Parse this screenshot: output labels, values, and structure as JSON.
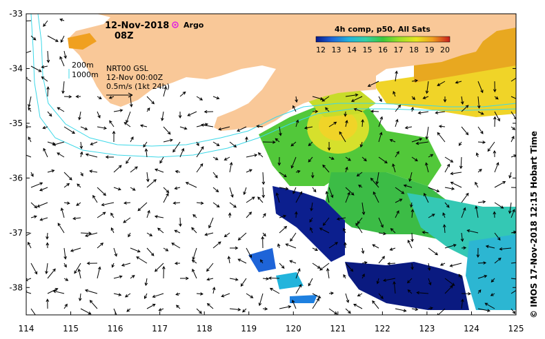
{
  "map": {
    "date": "12-Nov-2018",
    "time": "08Z",
    "argo_label": "Argo",
    "colorbar_title": "4h comp, p50, All Sats",
    "colorbar_ticks": [
      "12",
      "13",
      "14",
      "15",
      "16",
      "17",
      "18",
      "19",
      "20"
    ],
    "colorbar_colors": [
      "#0a1a8a",
      "#1e64d8",
      "#22b4dc",
      "#34d0a8",
      "#3ac83c",
      "#9ce028",
      "#e6e61e",
      "#f0b01e",
      "#e0641e",
      "#c81e1e"
    ],
    "contour_labels": [
      "200m",
      "1000m"
    ],
    "product_info": [
      "NRT00 GSL",
      "12-Nov 00:00Z",
      "0.5m/s (1kt 24h)"
    ],
    "credit": "©  IMOS 17-Nov-2018 12:15 Hobart Time",
    "x_ticks": [
      "114",
      "115",
      "116",
      "117",
      "118",
      "119",
      "120",
      "121",
      "122",
      "123",
      "124",
      "125"
    ],
    "y_ticks": [
      "-33",
      "-34",
      "-35",
      "-36",
      "-37",
      "-38"
    ],
    "x_range": [
      114,
      125
    ],
    "y_range": [
      -38.5,
      -33
    ],
    "land_color": "#f9c898",
    "contour_color": "#3cd8e8",
    "argo_color": "#e020e0"
  }
}
